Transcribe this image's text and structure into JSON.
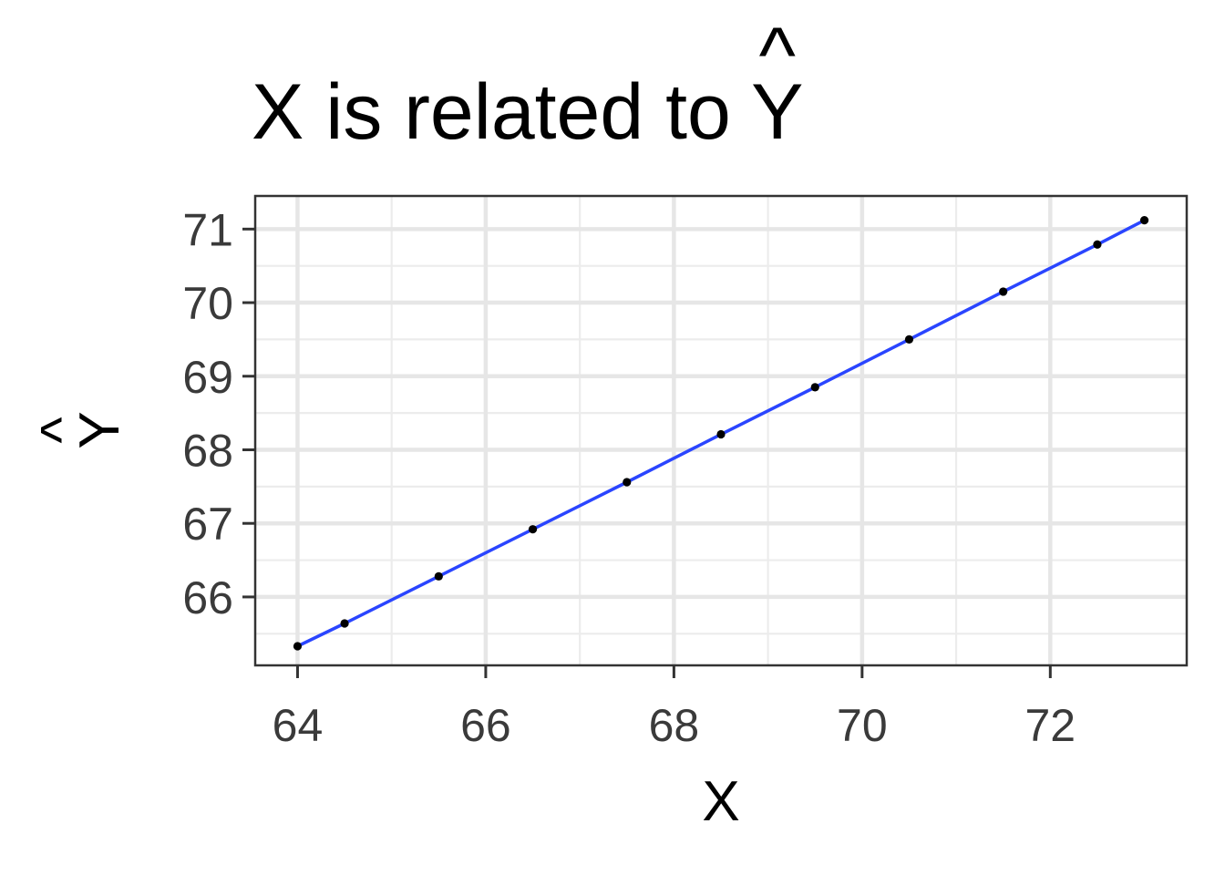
{
  "chart_data": {
    "type": "scatter",
    "title": "X is related to Ŷ",
    "title_main": "X is related to Y",
    "title_hat": "^",
    "xlabel": "X",
    "ylabel": "Ŷ",
    "ylabel_main": "Y",
    "ylabel_hat": "^",
    "xlim": [
      63.55,
      73.45
    ],
    "ylim": [
      65.07,
      71.45
    ],
    "x_major_ticks": [
      64,
      66,
      68,
      70,
      72
    ],
    "x_minor_ticks": [
      65,
      67,
      69,
      71
    ],
    "y_major_ticks": [
      66,
      67,
      68,
      69,
      70,
      71
    ],
    "y_minor_ticks": [
      65.5,
      66.5,
      67.5,
      68.5,
      69.5,
      70.5
    ],
    "x_tick_labels": [
      "64",
      "66",
      "68",
      "70",
      "72"
    ],
    "y_tick_labels": [
      "66",
      "67",
      "68",
      "69",
      "70",
      "71"
    ],
    "grid": true,
    "series": [
      {
        "x": [
          64.0,
          64.5,
          65.5,
          66.5,
          67.5,
          68.5,
          69.5,
          70.5,
          71.5,
          72.5,
          73.0
        ],
        "y": [
          65.33,
          65.64,
          66.28,
          66.92,
          67.56,
          68.21,
          68.85,
          69.5,
          70.15,
          70.79,
          71.12
        ]
      }
    ],
    "colors": {
      "line": "#2a45ff",
      "points": "#000000"
    }
  }
}
